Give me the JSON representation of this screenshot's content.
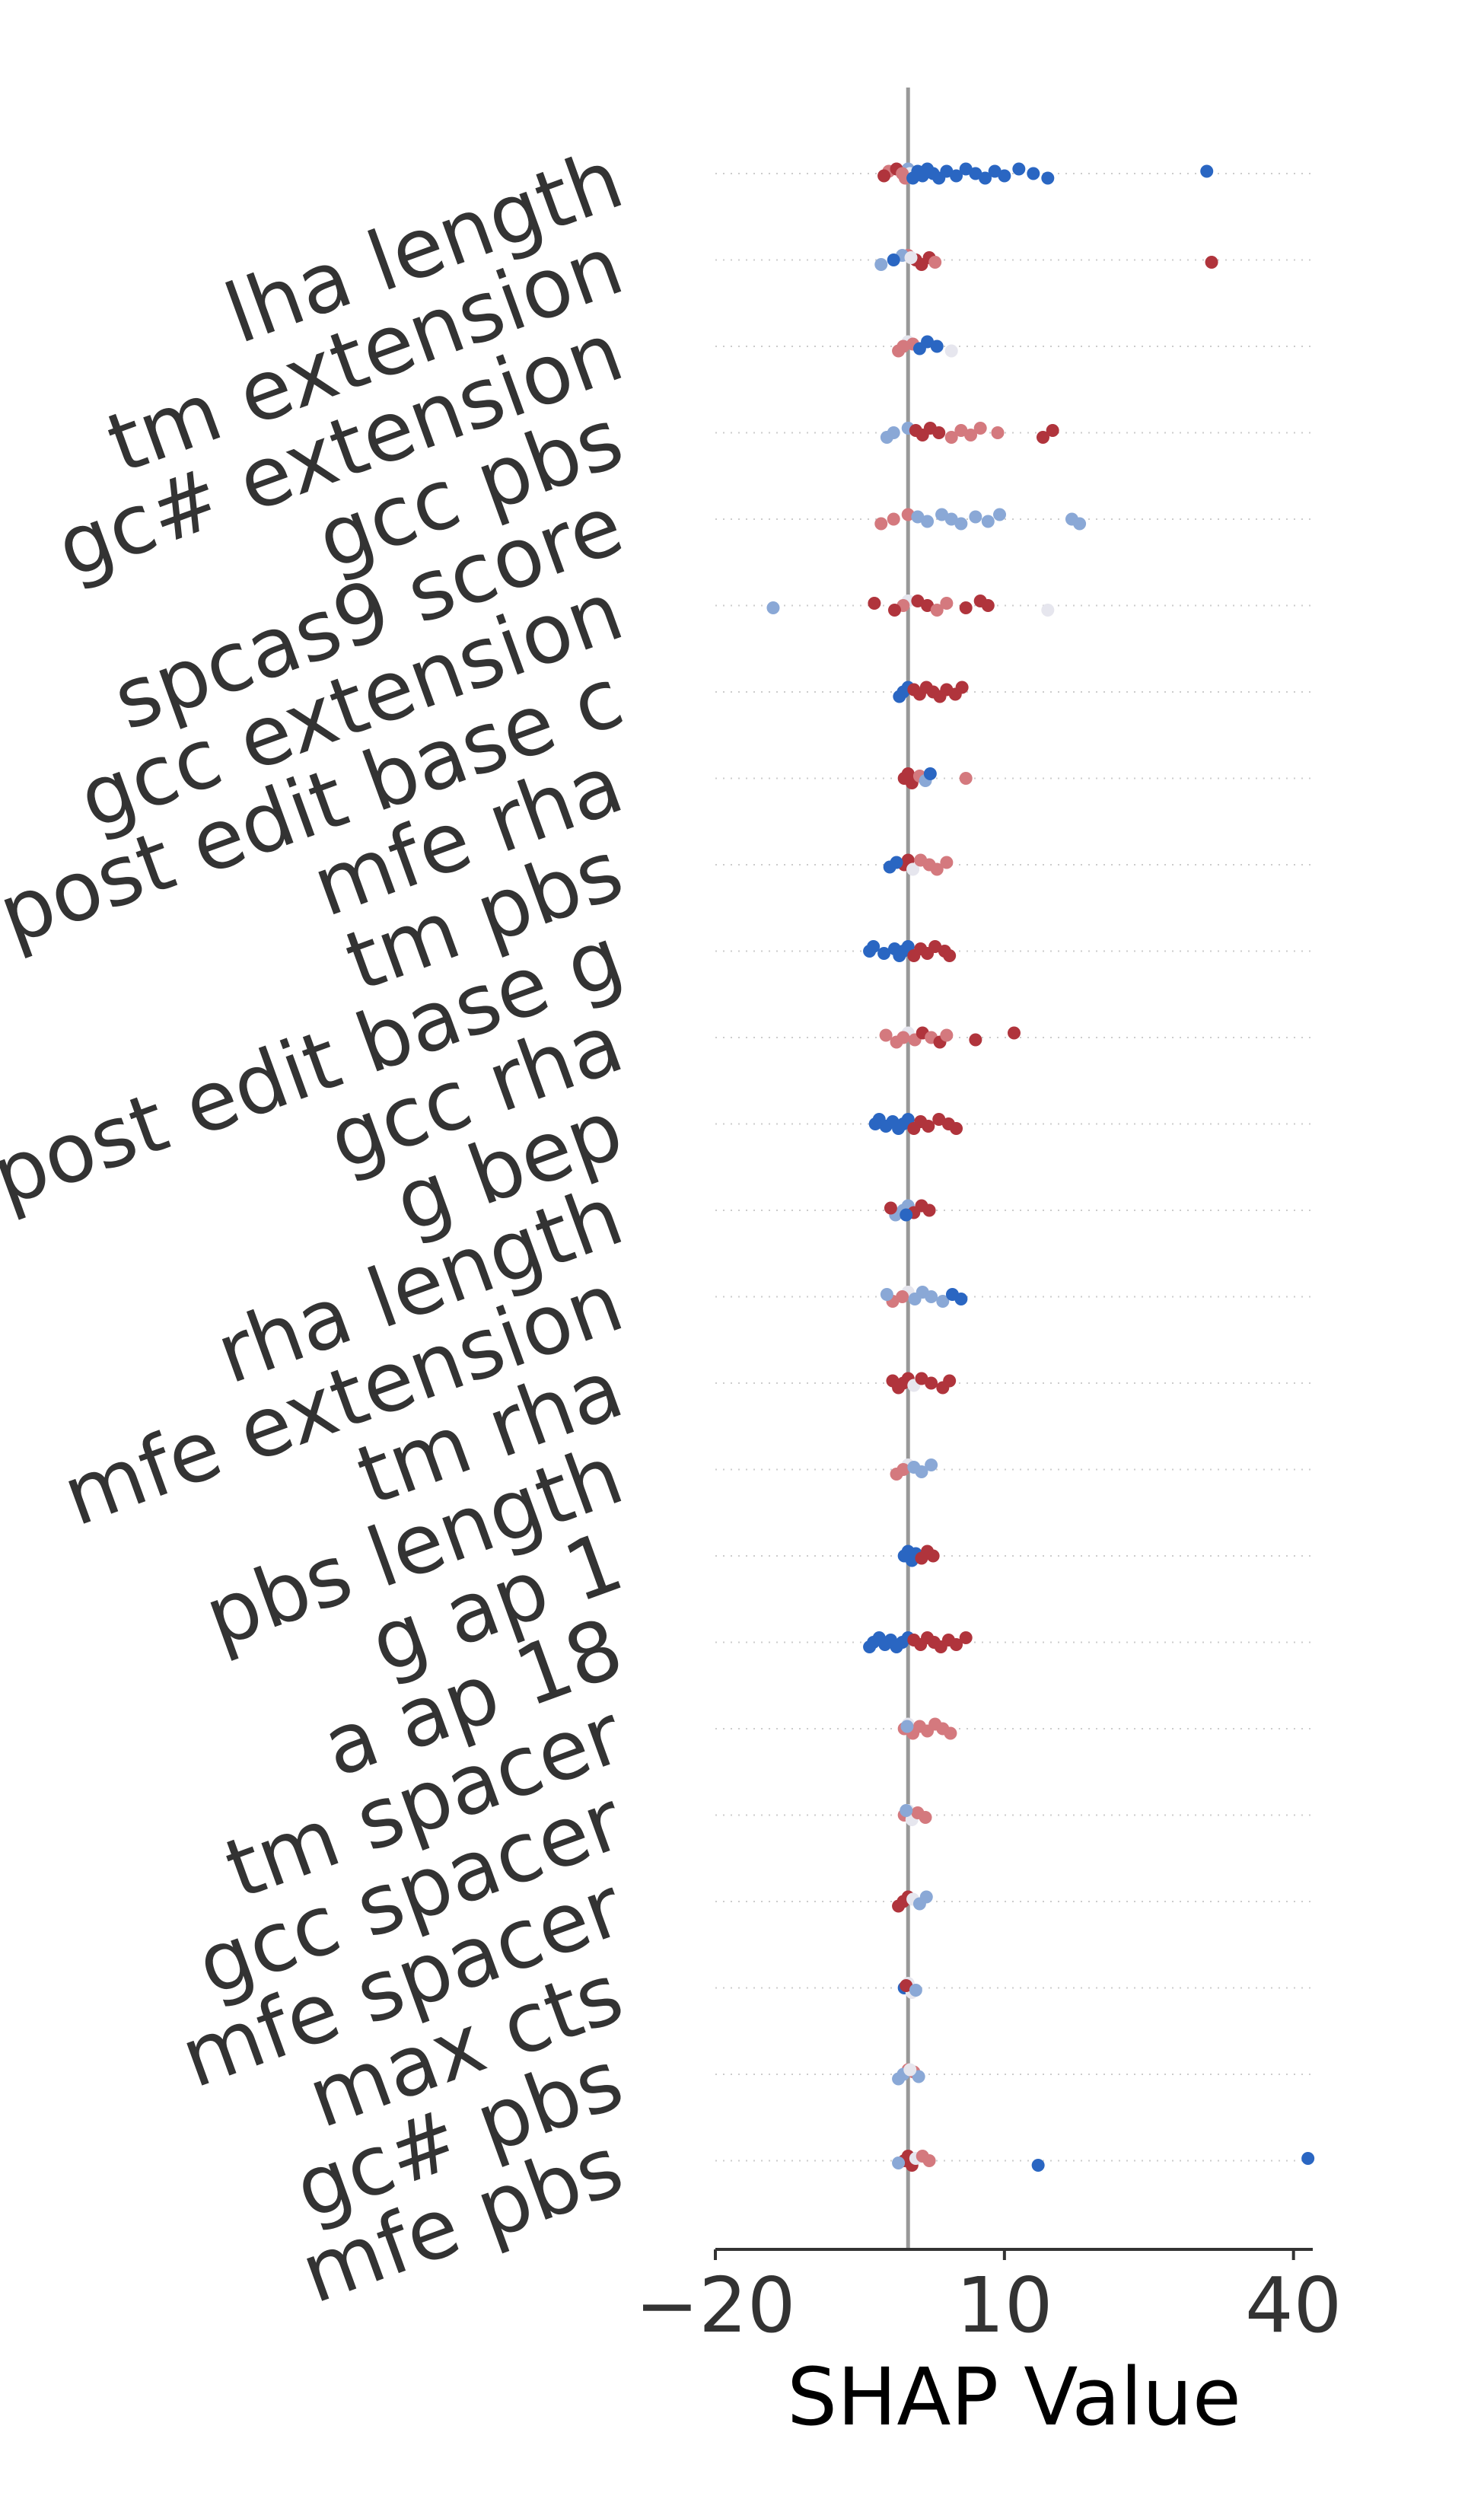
{
  "chart_data": {
    "type": "scatter",
    "title": "",
    "xlabel": "SHAP Value",
    "ylabel": "",
    "xlim": [
      -20,
      42
    ],
    "xticks": [
      -20,
      10,
      40
    ],
    "xtick_labels": [
      "−20",
      "10",
      "40"
    ],
    "grid": "dotted horizontal row lines",
    "legend": "none",
    "colors": {
      "high": "#b0343c",
      "mid_high": "#d4797e",
      "neutral": "#e6e6ee",
      "mid_low": "#8aa8d6",
      "low": "#2a66c2",
      "zero_line": "#999999",
      "grid": "#cccccc",
      "axis": "#333333",
      "text": "#333333"
    },
    "features": [
      {
        "name": "lha length",
        "points": [
          [
            0,
            "mid_low"
          ],
          [
            0.2,
            "neutral"
          ],
          [
            -0.3,
            "mid_high"
          ],
          [
            -2,
            "mid_high"
          ],
          [
            -2.5,
            "high"
          ],
          [
            -1.2,
            "high"
          ],
          [
            -0.6,
            "mid_high"
          ],
          [
            0.5,
            "low"
          ],
          [
            1,
            "low"
          ],
          [
            1.5,
            "low"
          ],
          [
            2,
            "low"
          ],
          [
            2.6,
            "low"
          ],
          [
            3.2,
            "low"
          ],
          [
            4,
            "low"
          ],
          [
            5,
            "low"
          ],
          [
            6,
            "low"
          ],
          [
            7,
            "low"
          ],
          [
            8,
            "low"
          ],
          [
            9,
            "low"
          ],
          [
            10,
            "low"
          ],
          [
            11.5,
            "low"
          ],
          [
            13,
            "low"
          ],
          [
            14.5,
            "low"
          ],
          [
            31,
            "low"
          ]
        ]
      },
      {
        "name": "tm extension",
        "points": [
          [
            0,
            "mid_high"
          ],
          [
            0.8,
            "high"
          ],
          [
            1.4,
            "high"
          ],
          [
            2.2,
            "high"
          ],
          [
            2.8,
            "mid_high"
          ],
          [
            -0.6,
            "mid_low"
          ],
          [
            -1.5,
            "low"
          ],
          [
            -2.8,
            "mid_low"
          ],
          [
            0.3,
            "neutral"
          ],
          [
            31.5,
            "high"
          ]
        ]
      },
      {
        "name": "gc# extension",
        "points": [
          [
            0,
            "neutral"
          ],
          [
            -0.5,
            "mid_high"
          ],
          [
            -1,
            "mid_high"
          ],
          [
            0.5,
            "mid_high"
          ],
          [
            1.2,
            "low"
          ],
          [
            2,
            "low"
          ],
          [
            3,
            "low"
          ],
          [
            4.5,
            "neutral"
          ]
        ]
      },
      {
        "name": "gcc pbs",
        "points": [
          [
            0,
            "mid_low"
          ],
          [
            -1.5,
            "mid_low"
          ],
          [
            -2.2,
            "mid_low"
          ],
          [
            0.8,
            "high"
          ],
          [
            1.5,
            "high"
          ],
          [
            2.3,
            "high"
          ],
          [
            3.2,
            "high"
          ],
          [
            4.5,
            "mid_high"
          ],
          [
            5.5,
            "mid_high"
          ],
          [
            6.5,
            "mid_high"
          ],
          [
            7.5,
            "mid_high"
          ],
          [
            9.3,
            "mid_high"
          ],
          [
            14,
            "high"
          ],
          [
            15,
            "high"
          ]
        ]
      },
      {
        "name": "spcas9 score",
        "points": [
          [
            0,
            "mid_high"
          ],
          [
            -1.5,
            "mid_high"
          ],
          [
            -2.8,
            "mid_high"
          ],
          [
            1,
            "mid_low"
          ],
          [
            2,
            "mid_low"
          ],
          [
            3.5,
            "mid_low"
          ],
          [
            4.5,
            "mid_low"
          ],
          [
            5.5,
            "mid_low"
          ],
          [
            7,
            "mid_low"
          ],
          [
            8.3,
            "mid_low"
          ],
          [
            9.5,
            "mid_low"
          ],
          [
            17,
            "mid_low"
          ],
          [
            17.8,
            "mid_low"
          ]
        ]
      },
      {
        "name": "gcc extension",
        "points": [
          [
            0,
            "neutral"
          ],
          [
            -0.5,
            "mid_high"
          ],
          [
            -1.4,
            "high"
          ],
          [
            -3.5,
            "high"
          ],
          [
            -14,
            "mid_low"
          ],
          [
            1,
            "high"
          ],
          [
            2,
            "high"
          ],
          [
            3,
            "mid_high"
          ],
          [
            4,
            "mid_high"
          ],
          [
            6,
            "high"
          ],
          [
            7.5,
            "high"
          ],
          [
            8.3,
            "high"
          ],
          [
            14.5,
            "neutral"
          ]
        ]
      },
      {
        "name": "post edit base c",
        "points": [
          [
            0,
            "low"
          ],
          [
            -0.5,
            "low"
          ],
          [
            -0.9,
            "low"
          ],
          [
            0.6,
            "high"
          ],
          [
            1.2,
            "high"
          ],
          [
            1.9,
            "high"
          ],
          [
            2.6,
            "high"
          ],
          [
            3.3,
            "high"
          ],
          [
            4,
            "high"
          ],
          [
            4.9,
            "high"
          ],
          [
            5.6,
            "high"
          ]
        ]
      },
      {
        "name": "mfe rha",
        "points": [
          [
            0,
            "high"
          ],
          [
            -0.4,
            "high"
          ],
          [
            0.4,
            "high"
          ],
          [
            1.2,
            "mid_high"
          ],
          [
            1.8,
            "mid_low"
          ],
          [
            2.3,
            "low"
          ],
          [
            6,
            "mid_high"
          ]
        ]
      },
      {
        "name": "tm pbs",
        "points": [
          [
            0,
            "high"
          ],
          [
            -0.4,
            "high"
          ],
          [
            0.5,
            "neutral"
          ],
          [
            -1.2,
            "low"
          ],
          [
            -1.9,
            "low"
          ],
          [
            1.3,
            "mid_high"
          ],
          [
            2.2,
            "mid_high"
          ],
          [
            3,
            "mid_high"
          ],
          [
            4,
            "mid_high"
          ]
        ]
      },
      {
        "name": "post edit base g",
        "points": [
          [
            0,
            "low"
          ],
          [
            -0.5,
            "low"
          ],
          [
            -0.9,
            "low"
          ],
          [
            -1.4,
            "low"
          ],
          [
            -2.5,
            "low"
          ],
          [
            -3.6,
            "low"
          ],
          [
            -4,
            "low"
          ],
          [
            0.6,
            "high"
          ],
          [
            1.3,
            "high"
          ],
          [
            2,
            "high"
          ],
          [
            2.8,
            "high"
          ],
          [
            3.8,
            "high"
          ],
          [
            4.3,
            "high"
          ]
        ]
      },
      {
        "name": "gcc rha",
        "points": [
          [
            0,
            "neutral"
          ],
          [
            -0.5,
            "mid_high"
          ],
          [
            -1.2,
            "mid_high"
          ],
          [
            -2.3,
            "mid_high"
          ],
          [
            0.7,
            "mid_high"
          ],
          [
            1.5,
            "high"
          ],
          [
            2.4,
            "mid_high"
          ],
          [
            3.3,
            "high"
          ],
          [
            4,
            "mid_high"
          ],
          [
            7,
            "high"
          ],
          [
            11,
            "high"
          ]
        ]
      },
      {
        "name": "g bep",
        "points": [
          [
            0,
            "low"
          ],
          [
            -0.5,
            "low"
          ],
          [
            -1,
            "low"
          ],
          [
            -1.6,
            "low"
          ],
          [
            -2.3,
            "low"
          ],
          [
            -3,
            "low"
          ],
          [
            -3.4,
            "low"
          ],
          [
            0.6,
            "high"
          ],
          [
            1.3,
            "high"
          ],
          [
            2.1,
            "high"
          ],
          [
            3.2,
            "high"
          ],
          [
            4.2,
            "high"
          ],
          [
            5,
            "high"
          ]
        ]
      },
      {
        "name": "rha length",
        "points": [
          [
            0,
            "mid_low"
          ],
          [
            -0.5,
            "mid_low"
          ],
          [
            -1.3,
            "mid_low"
          ],
          [
            -1.8,
            "high"
          ],
          [
            0.6,
            "high"
          ],
          [
            1.4,
            "high"
          ],
          [
            2.2,
            "high"
          ],
          [
            -0.2,
            "low"
          ]
        ]
      },
      {
        "name": "mfe extension",
        "points": [
          [
            0,
            "neutral"
          ],
          [
            -0.6,
            "mid_high"
          ],
          [
            -1.6,
            "mid_high"
          ],
          [
            -2.2,
            "mid_low"
          ],
          [
            0.7,
            "mid_low"
          ],
          [
            1.5,
            "mid_low"
          ],
          [
            2.4,
            "mid_low"
          ],
          [
            3.6,
            "mid_low"
          ],
          [
            4.6,
            "low"
          ],
          [
            5.5,
            "low"
          ]
        ]
      },
      {
        "name": "tm rha",
        "points": [
          [
            0,
            "high"
          ],
          [
            -0.5,
            "high"
          ],
          [
            -1,
            "high"
          ],
          [
            -1.6,
            "high"
          ],
          [
            0.6,
            "neutral"
          ],
          [
            1.4,
            "high"
          ],
          [
            2.4,
            "high"
          ],
          [
            3.6,
            "high"
          ],
          [
            4.3,
            "high"
          ]
        ]
      },
      {
        "name": "pbs length",
        "points": [
          [
            0,
            "neutral"
          ],
          [
            -0.5,
            "mid_high"
          ],
          [
            -1.2,
            "mid_high"
          ],
          [
            0.6,
            "mid_low"
          ],
          [
            1.4,
            "mid_low"
          ],
          [
            2.4,
            "mid_low"
          ]
        ]
      },
      {
        "name": "g ap 1",
        "points": [
          [
            0,
            "low"
          ],
          [
            -0.4,
            "low"
          ],
          [
            0.4,
            "low"
          ],
          [
            0.8,
            "low"
          ],
          [
            1.4,
            "high"
          ],
          [
            2,
            "high"
          ],
          [
            2.6,
            "high"
          ]
        ]
      },
      {
        "name": "a ap 18",
        "points": [
          [
            0,
            "low"
          ],
          [
            -0.6,
            "low"
          ],
          [
            -1.2,
            "low"
          ],
          [
            -1.8,
            "low"
          ],
          [
            -2.4,
            "low"
          ],
          [
            -3,
            "low"
          ],
          [
            -3.6,
            "low"
          ],
          [
            -4,
            "low"
          ],
          [
            0.6,
            "high"
          ],
          [
            1.3,
            "high"
          ],
          [
            2,
            "high"
          ],
          [
            2.7,
            "high"
          ],
          [
            3.4,
            "high"
          ],
          [
            4.2,
            "high"
          ],
          [
            5,
            "high"
          ],
          [
            6,
            "high"
          ]
        ]
      },
      {
        "name": "tm spacer",
        "points": [
          [
            0,
            "neutral"
          ],
          [
            -0.4,
            "mid_high"
          ],
          [
            0.5,
            "mid_high"
          ],
          [
            1.2,
            "mid_high"
          ],
          [
            2,
            "mid_high"
          ],
          [
            2.8,
            "mid_high"
          ],
          [
            3.6,
            "mid_high"
          ],
          [
            4.4,
            "mid_high"
          ],
          [
            -0.1,
            "mid_low"
          ]
        ]
      },
      {
        "name": "gcc spacer",
        "points": [
          [
            0,
            "neutral"
          ],
          [
            -0.4,
            "mid_high"
          ],
          [
            0.4,
            "neutral"
          ],
          [
            1,
            "mid_high"
          ],
          [
            1.8,
            "mid_high"
          ],
          [
            -0.2,
            "mid_low"
          ]
        ]
      },
      {
        "name": "mfe spacer",
        "points": [
          [
            0,
            "high"
          ],
          [
            -0.5,
            "high"
          ],
          [
            -1,
            "high"
          ],
          [
            0.5,
            "neutral"
          ],
          [
            1.2,
            "mid_low"
          ],
          [
            1.9,
            "mid_low"
          ]
        ]
      },
      {
        "name": "max cts",
        "points": [
          [
            0,
            "neutral"
          ],
          [
            -0.4,
            "low"
          ],
          [
            0.4,
            "neutral"
          ],
          [
            -0.2,
            "high"
          ],
          [
            0.8,
            "mid_low"
          ]
        ]
      },
      {
        "name": "gc# pbs",
        "points": [
          [
            0,
            "mid_high"
          ],
          [
            -0.5,
            "mid_low"
          ],
          [
            -1,
            "mid_low"
          ],
          [
            0.6,
            "mid_high"
          ],
          [
            1.1,
            "mid_low"
          ],
          [
            0.2,
            "neutral"
          ]
        ]
      },
      {
        "name": "mfe pbs",
        "points": [
          [
            0,
            "high"
          ],
          [
            -0.4,
            "high"
          ],
          [
            0.4,
            "high"
          ],
          [
            0.8,
            "neutral"
          ],
          [
            -1,
            "mid_low"
          ],
          [
            1.5,
            "mid_high"
          ],
          [
            2.2,
            "mid_high"
          ],
          [
            13.5,
            "low"
          ],
          [
            41.5,
            "low"
          ]
        ]
      }
    ]
  }
}
